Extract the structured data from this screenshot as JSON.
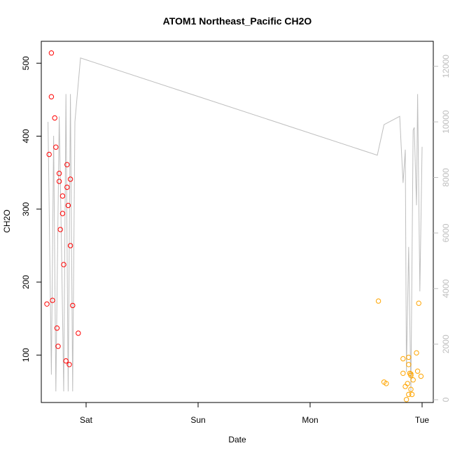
{
  "chart_data": {
    "type": "scatter",
    "title": "ATOM1 Northeast_Pacific CH2O",
    "xlabel": "Date",
    "ylabel": "CH2O",
    "x_ticks": [
      {
        "label": "Sat",
        "value": 1.0
      },
      {
        "label": "Sun",
        "value": 2.0
      },
      {
        "label": "Mon",
        "value": 3.0
      },
      {
        "label": "Tue",
        "value": 4.0
      }
    ],
    "xlim": [
      0.6,
      4.1
    ],
    "ylim": [
      35,
      530
    ],
    "y_ticks": [
      100,
      200,
      300,
      400,
      500
    ],
    "y2lim": [
      -100,
      12900
    ],
    "y2_ticks": [
      0,
      2000,
      4000,
      6000,
      8000,
      10000,
      12000
    ],
    "grid": false,
    "colors": {
      "series1": "#ff0000",
      "series2": "#ffa500",
      "altitude_line": "#bebebe",
      "axis": "#000000",
      "right_axis": "#bebebe"
    },
    "series": [
      {
        "points": [
          [
            0.65,
            170
          ],
          [
            0.67,
            375
          ],
          [
            0.69,
            514
          ],
          [
            0.69,
            454
          ],
          [
            0.7,
            175
          ],
          [
            0.72,
            425
          ],
          [
            0.73,
            385
          ],
          [
            0.74,
            137
          ],
          [
            0.75,
            112
          ],
          [
            0.76,
            349
          ],
          [
            0.76,
            338
          ],
          [
            0.77,
            272
          ],
          [
            0.79,
            318
          ],
          [
            0.79,
            294
          ],
          [
            0.8,
            224
          ],
          [
            0.82,
            92
          ],
          [
            0.83,
            361
          ],
          [
            0.83,
            330
          ],
          [
            0.84,
            305
          ],
          [
            0.85,
            87
          ],
          [
            0.86,
            250
          ],
          [
            0.86,
            341
          ],
          [
            0.88,
            168
          ],
          [
            0.93,
            130
          ]
        ]
      },
      {
        "points": [
          [
            3.61,
            174
          ],
          [
            3.66,
            63
          ],
          [
            3.68,
            61
          ],
          [
            3.83,
            75
          ],
          [
            3.83,
            95
          ],
          [
            3.85,
            57
          ],
          [
            3.86,
            39
          ],
          [
            3.87,
            61
          ],
          [
            3.88,
            97
          ],
          [
            3.88,
            87
          ],
          [
            3.88,
            46
          ],
          [
            3.89,
            75
          ],
          [
            3.9,
            72
          ],
          [
            3.9,
            53
          ],
          [
            3.9,
            74
          ],
          [
            3.91,
            46
          ],
          [
            3.92,
            66
          ],
          [
            3.95,
            103
          ],
          [
            3.96,
            78
          ],
          [
            3.97,
            171
          ],
          [
            3.99,
            71
          ]
        ]
      }
    ],
    "secondary_line": [
      [
        0.66,
        10000
      ],
      [
        0.69,
        900
      ],
      [
        0.71,
        9500
      ],
      [
        0.73,
        300
      ],
      [
        0.76,
        10200
      ],
      [
        0.78,
        5600
      ],
      [
        0.8,
        300
      ],
      [
        0.82,
        11000
      ],
      [
        0.84,
        300
      ],
      [
        0.86,
        11000
      ],
      [
        0.88,
        300
      ],
      [
        0.9,
        10000
      ],
      [
        0.95,
        12300
      ],
      [
        3.6,
        8800
      ],
      [
        3.66,
        9900
      ],
      [
        3.8,
        10200
      ],
      [
        3.83,
        7800
      ],
      [
        3.85,
        9000
      ],
      [
        3.86,
        1000
      ],
      [
        3.88,
        5500
      ],
      [
        3.9,
        300
      ],
      [
        3.92,
        9700
      ],
      [
        3.93,
        9800
      ],
      [
        3.95,
        7000
      ],
      [
        3.96,
        11000
      ],
      [
        3.98,
        3900
      ],
      [
        4.0,
        9100
      ]
    ]
  }
}
